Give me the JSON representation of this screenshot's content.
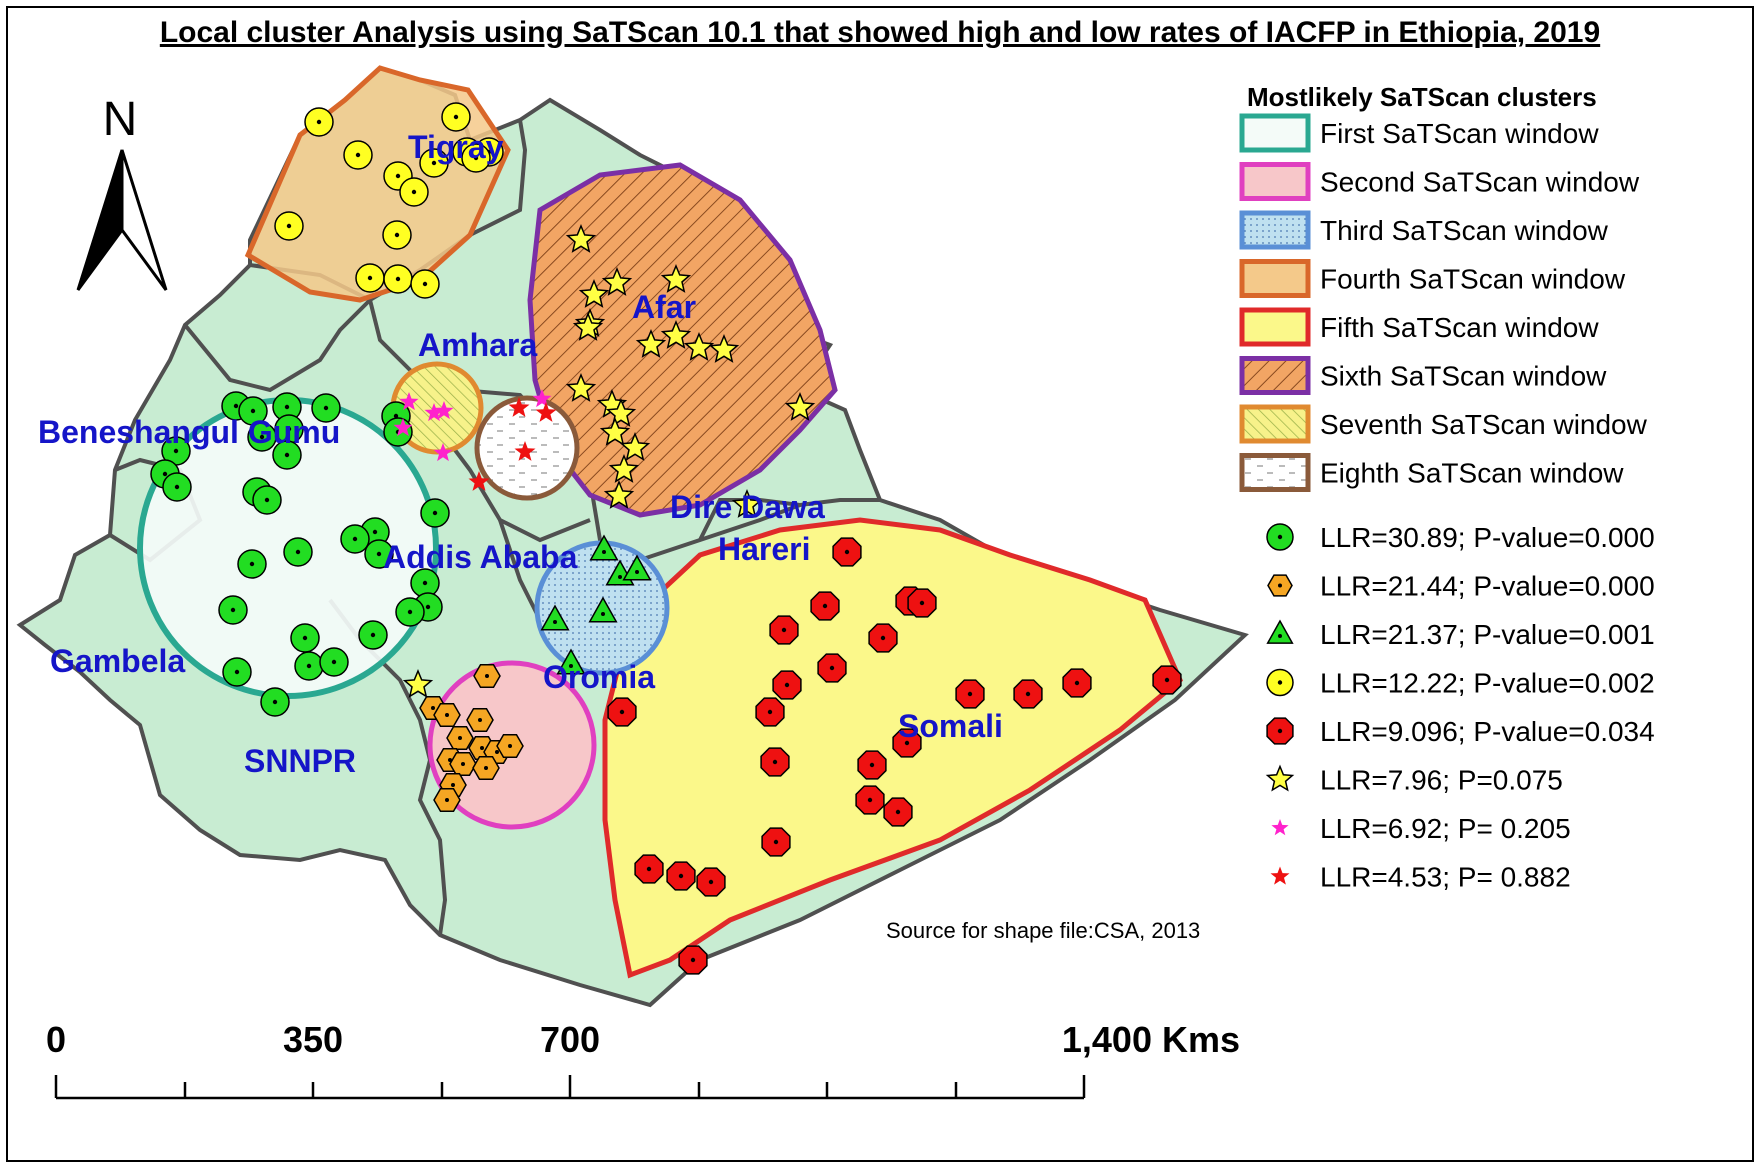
{
  "title": "Local cluster Analysis using SaTScan 10.1 that showed high and low rates of IACFP in Ethiopia, 2019",
  "north_label": "N",
  "source": "Source for shape file:CSA, 2013",
  "regions": {
    "tigray": "Tigray",
    "afar": "Afar",
    "amhara": "Amhara",
    "beneshangul": "Beneshangul Gumu",
    "addis": "Addis Ababa",
    "diredawa": "Dire Dawa",
    "hareri": "Hareri",
    "gambela": "Gambela",
    "oromia": "Oromia",
    "snnpr": "SNNPR",
    "somali": "Somali"
  },
  "legend": {
    "title": "Mostlikely SaTScan clusters",
    "windows": [
      {
        "label": "First SaTScan window",
        "border": "#2aa891",
        "fill": "#f4fbf8"
      },
      {
        "label": "Second  SaTScan window",
        "border": "#e040c0",
        "fill": "#f7c7c9"
      },
      {
        "label": "Third  SaTScan window",
        "border": "#5a8fd6",
        "fill": "#bfe0f0"
      },
      {
        "label": "Fourth  SaTScan window",
        "border": "#d9672a",
        "fill": "#f4c98a"
      },
      {
        "label": "Fifth  SaTScan window",
        "border": "#e02a2a",
        "fill": "#fbf88a"
      },
      {
        "label": "Sixth  SaTScan window",
        "border": "#7b2fa5",
        "fill": "#f0a060"
      },
      {
        "label": "Seventh  SaTScan window",
        "border": "#e08a30",
        "fill": "#f7f28a"
      },
      {
        "label": "Eighth  SaTScan window",
        "border": "#8a5a3a",
        "fill": "#ffffff"
      }
    ],
    "points": [
      {
        "label": "LLR=30.89; P-value=0.000",
        "symbol": "green-circle"
      },
      {
        "label": "LLR=21.44; P-value=0.000",
        "symbol": "orange-hexagon"
      },
      {
        "label": "LLR=21.37; P-value=0.001",
        "symbol": "green-triangle"
      },
      {
        "label": "LLR=12.22; P-value=0.002",
        "symbol": "yellow-circle"
      },
      {
        "label": "LLR=9.096; P-value=0.034",
        "symbol": "red-octagon"
      },
      {
        "label": "LLR=7.96; P=0.075",
        "symbol": "yellow-star"
      },
      {
        "label": "LLR=6.92; P= 0.205",
        "symbol": "magenta-star"
      },
      {
        "label": "LLR=4.53; P= 0.882",
        "symbol": "red-star"
      }
    ]
  },
  "scale": {
    "labels": [
      "0",
      "350",
      "700",
      "1,400 Kms"
    ]
  },
  "colors": {
    "land": "#c8ecd2",
    "boundary": "#505050",
    "label": "#1515c8"
  }
}
